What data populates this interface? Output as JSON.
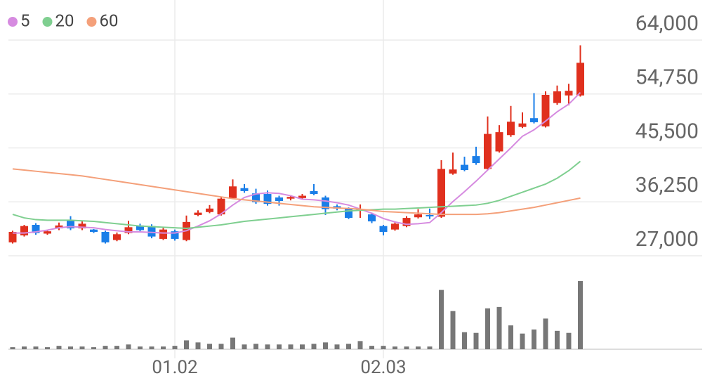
{
  "chart_data": {
    "type": "candlestick",
    "categories": [
      null,
      null,
      null,
      null,
      null,
      null,
      null,
      null,
      null,
      null,
      null,
      null,
      null,
      null,
      "01.02",
      null,
      null,
      null,
      null,
      null,
      null,
      null,
      null,
      null,
      null,
      null,
      null,
      null,
      null,
      null,
      null,
      null,
      "02.03",
      null,
      null,
      null,
      null,
      null,
      null,
      null,
      null,
      null,
      null,
      null,
      null,
      null,
      null,
      null,
      null,
      null
    ],
    "open": [
      29300,
      30500,
      32300,
      30800,
      31700,
      33100,
      31700,
      31500,
      31100,
      29700,
      30900,
      32200,
      32100,
      29900,
      31200,
      29700,
      34000,
      34500,
      34100,
      36900,
      38600,
      37700,
      37600,
      37000,
      36800,
      36900,
      38100,
      37000,
      35500,
      35100,
      34800,
      34100,
      32100,
      31500,
      32100,
      33600,
      34000,
      33700,
      41100,
      42600,
      44100,
      41900,
      44900,
      47700,
      49100,
      50600,
      49200,
      53200,
      54500,
      54500
    ],
    "high": [
      31300,
      32300,
      32600,
      31400,
      32700,
      33800,
      33000,
      31600,
      31300,
      31000,
      33000,
      32500,
      32400,
      31800,
      31500,
      33900,
      34800,
      35700,
      37000,
      40100,
      39300,
      38500,
      38200,
      37300,
      37400,
      37600,
      39300,
      37300,
      35800,
      35300,
      35800,
      34400,
      32300,
      32800,
      33800,
      35000,
      35100,
      43400,
      44700,
      44000,
      45700,
      50900,
      49400,
      52700,
      51600,
      54900,
      55200,
      56200,
      56500,
      63100
    ],
    "low": [
      29100,
      30300,
      30600,
      30600,
      31400,
      31400,
      31400,
      30900,
      29100,
      29500,
      30700,
      31200,
      30000,
      29700,
      29600,
      29500,
      33800,
      34300,
      33900,
      36700,
      37800,
      35900,
      35600,
      35600,
      36500,
      36700,
      37400,
      34000,
      34800,
      33300,
      33500,
      32600,
      30500,
      31300,
      31900,
      33400,
      33300,
      33500,
      40900,
      41500,
      42600,
      41700,
      44700,
      47400,
      48900,
      49700,
      49000,
      52900,
      52800,
      54300
    ],
    "close": [
      31100,
      32100,
      30900,
      31200,
      32200,
      31700,
      32500,
      31100,
      29300,
      30700,
      31900,
      31400,
      30300,
      31500,
      29900,
      32800,
      34400,
      35100,
      36800,
      38900,
      38100,
      36200,
      35900,
      36400,
      37100,
      37300,
      37600,
      35000,
      35100,
      33500,
      35000,
      32900,
      31100,
      32500,
      33500,
      34100,
      33800,
      41900,
      41800,
      41700,
      42900,
      47900,
      48200,
      50000,
      49700,
      49900,
      54600,
      55200,
      55300,
      60100
    ],
    "volume": [
      3,
      4,
      4,
      3,
      5,
      4,
      4,
      3,
      5,
      5,
      7,
      4,
      4,
      4,
      5,
      13,
      10,
      8,
      8,
      17,
      7,
      8,
      7,
      7,
      7,
      7,
      8,
      10,
      7,
      8,
      12,
      5,
      5,
      4,
      4,
      4,
      4,
      87,
      56,
      25,
      24,
      60,
      62,
      35,
      23,
      29,
      45,
      27,
      24,
      100
    ],
    "volume_ylim": [
      0,
      100
    ],
    "series": [
      {
        "name": "5",
        "color": "#d68be0",
        "values": [
          30900,
          30900,
          31100,
          31400,
          31800,
          32000,
          31900,
          31800,
          31500,
          31300,
          31100,
          31100,
          31000,
          30900,
          30900,
          31300,
          32100,
          33000,
          34200,
          35700,
          37000,
          37600,
          37800,
          37700,
          37300,
          36700,
          36600,
          36400,
          36100,
          35700,
          35000,
          34300,
          33400,
          32800,
          32400,
          32500,
          32700,
          34400,
          36300,
          38000,
          39800,
          41700,
          43600,
          45500,
          47500,
          48600,
          50100,
          51700,
          53000,
          55000
        ]
      },
      {
        "name": "20",
        "color": "#7fcf90",
        "values": [
          34100,
          33500,
          33200,
          33100,
          33100,
          33100,
          33000,
          32900,
          32700,
          32500,
          32300,
          32100,
          32000,
          31900,
          31800,
          31700,
          31900,
          32100,
          32300,
          32600,
          32900,
          33100,
          33300,
          33500,
          33700,
          33900,
          34100,
          34300,
          34500,
          34700,
          34800,
          34900,
          35000,
          35000,
          35100,
          35200,
          35300,
          35400,
          35500,
          35600,
          35700,
          36000,
          36500,
          37200,
          37900,
          38600,
          39300,
          40300,
          41600,
          43200
        ]
      },
      {
        "name": "60",
        "color": "#f4a07a",
        "values": [
          41900,
          41700,
          41500,
          41300,
          41100,
          40900,
          40700,
          40400,
          40100,
          39800,
          39500,
          39200,
          38900,
          38600,
          38300,
          38000,
          37700,
          37400,
          37100,
          36800,
          36600,
          36400,
          36200,
          36000,
          35800,
          35600,
          35400,
          35300,
          35200,
          35100,
          35000,
          34800,
          34600,
          34500,
          34400,
          34300,
          34200,
          34100,
          34100,
          34100,
          34100,
          34200,
          34400,
          34700,
          35000,
          35300,
          35700,
          36100,
          36500,
          36900
        ]
      }
    ],
    "up_color": "#e0301e",
    "down_color": "#1a7ee8",
    "volume_color": "#777777",
    "ylim": [
      27000,
      64000
    ],
    "yticks": [
      {
        "value": 64000,
        "label": "64,000"
      },
      {
        "value": 54750,
        "label": "54,750"
      },
      {
        "value": 45500,
        "label": "45,500"
      },
      {
        "value": 36250,
        "label": "36,250"
      },
      {
        "value": 27000,
        "label": "27,000"
      }
    ],
    "grid": true
  }
}
